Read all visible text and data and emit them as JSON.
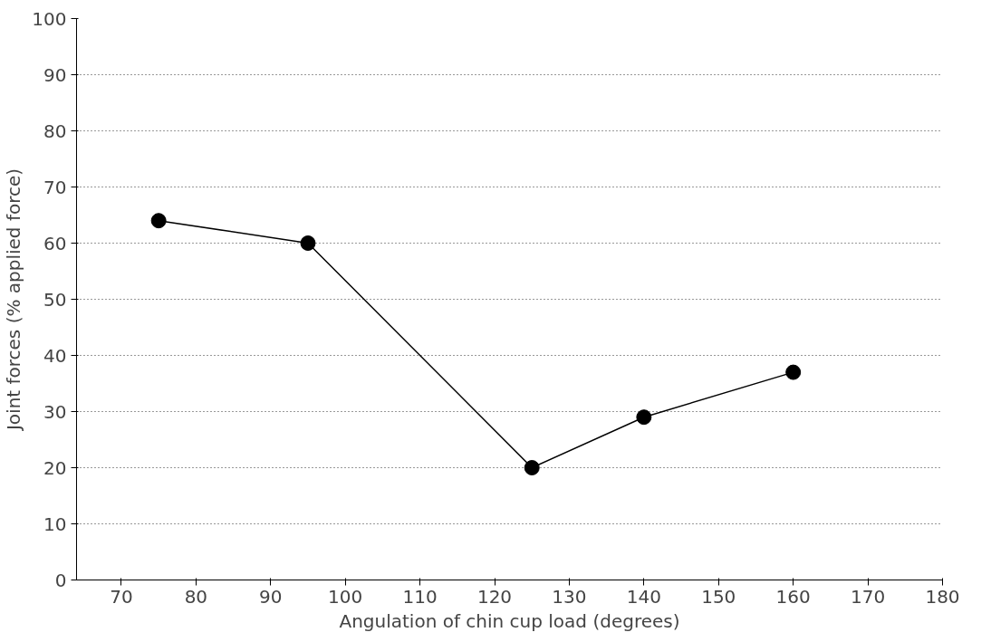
{
  "chart_data": {
    "type": "line",
    "xlabel": "Angulation of chin cup load (degrees)",
    "ylabel": "Joint forces (% applied force)",
    "x": [
      75,
      95,
      125,
      140,
      160
    ],
    "series": [
      {
        "color": "#000000",
        "values": [
          64,
          60,
          20,
          29,
          37
        ]
      }
    ],
    "xlim": [
      64,
      180
    ],
    "xticks": [
      70,
      80,
      90,
      100,
      110,
      120,
      130,
      140,
      150,
      160,
      170,
      180
    ],
    "ylim": [
      0,
      100
    ],
    "yticks": [
      0,
      10,
      20,
      30,
      40,
      50,
      60,
      70,
      80,
      90,
      100
    ],
    "grid": "y",
    "marker": "circle",
    "line_style": "solid"
  }
}
